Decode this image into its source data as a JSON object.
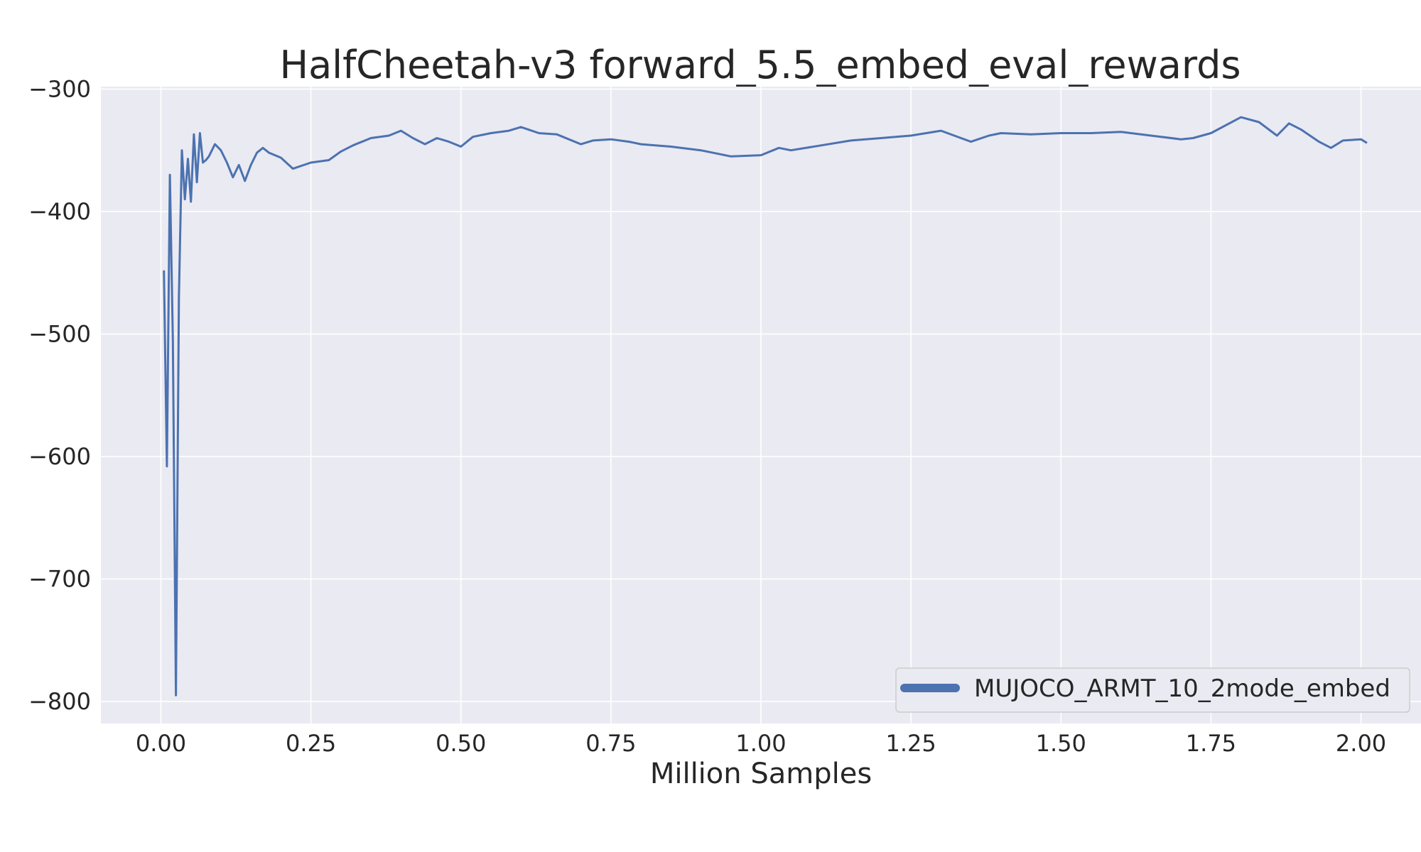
{
  "chart_data": {
    "type": "line",
    "title": "HalfCheetah-v3 forward_5.5_embed_eval_rewards",
    "xlabel": "Million Samples",
    "ylabel": "",
    "xlim": [
      -0.1,
      2.1
    ],
    "ylim": [
      -818,
      -298
    ],
    "xticks": [
      0.0,
      0.25,
      0.5,
      0.75,
      1.0,
      1.25,
      1.5,
      1.75,
      2.0
    ],
    "xtick_labels": [
      "0.00",
      "0.25",
      "0.50",
      "0.75",
      "1.00",
      "1.25",
      "1.50",
      "1.75",
      "2.00"
    ],
    "yticks": [
      -300,
      -400,
      -500,
      -600,
      -700,
      -800
    ],
    "ytick_labels": [
      "−300",
      "−400",
      "−500",
      "−600",
      "−700",
      "−800"
    ],
    "grid": true,
    "legend_position": "bottom-right",
    "background_color": "#eaeaf2",
    "series": [
      {
        "name": "MUJOCO_ARMT_10_2mode_embed",
        "color": "#4c72b0",
        "x": [
          0.005,
          0.01,
          0.015,
          0.02,
          0.025,
          0.03,
          0.035,
          0.04,
          0.045,
          0.05,
          0.055,
          0.06,
          0.065,
          0.07,
          0.075,
          0.08,
          0.09,
          0.1,
          0.11,
          0.12,
          0.13,
          0.14,
          0.15,
          0.16,
          0.17,
          0.18,
          0.2,
          0.22,
          0.25,
          0.28,
          0.3,
          0.32,
          0.35,
          0.38,
          0.4,
          0.42,
          0.44,
          0.46,
          0.48,
          0.5,
          0.52,
          0.55,
          0.58,
          0.6,
          0.63,
          0.66,
          0.7,
          0.72,
          0.75,
          0.78,
          0.8,
          0.85,
          0.9,
          0.95,
          1.0,
          1.03,
          1.05,
          1.1,
          1.15,
          1.2,
          1.25,
          1.3,
          1.35,
          1.38,
          1.4,
          1.45,
          1.5,
          1.55,
          1.6,
          1.65,
          1.7,
          1.72,
          1.75,
          1.8,
          1.83,
          1.86,
          1.88,
          1.9,
          1.93,
          1.95,
          1.97,
          2.0,
          2.01
        ],
        "y": [
          -448,
          -608,
          -370,
          -505,
          -795,
          -470,
          -350,
          -390,
          -357,
          -392,
          -337,
          -376,
          -336,
          -360,
          -358,
          -355,
          -345,
          -350,
          -360,
          -372,
          -362,
          -375,
          -362,
          -352,
          -348,
          -352,
          -356,
          -365,
          -360,
          -358,
          -351,
          -346,
          -340,
          -338,
          -334,
          -340,
          -345,
          -340,
          -343,
          -347,
          -339,
          -336,
          -334,
          -331,
          -336,
          -337,
          -345,
          -342,
          -341,
          -343,
          -345,
          -347,
          -350,
          -355,
          -354,
          -348,
          -350,
          -346,
          -342,
          -340,
          -338,
          -334,
          -343,
          -338,
          -336,
          -337,
          -336,
          -336,
          -335,
          -338,
          -341,
          -340,
          -336,
          -323,
          -327,
          -338,
          -328,
          -333,
          -343,
          -348,
          -342,
          -341,
          -344
        ]
      }
    ]
  }
}
